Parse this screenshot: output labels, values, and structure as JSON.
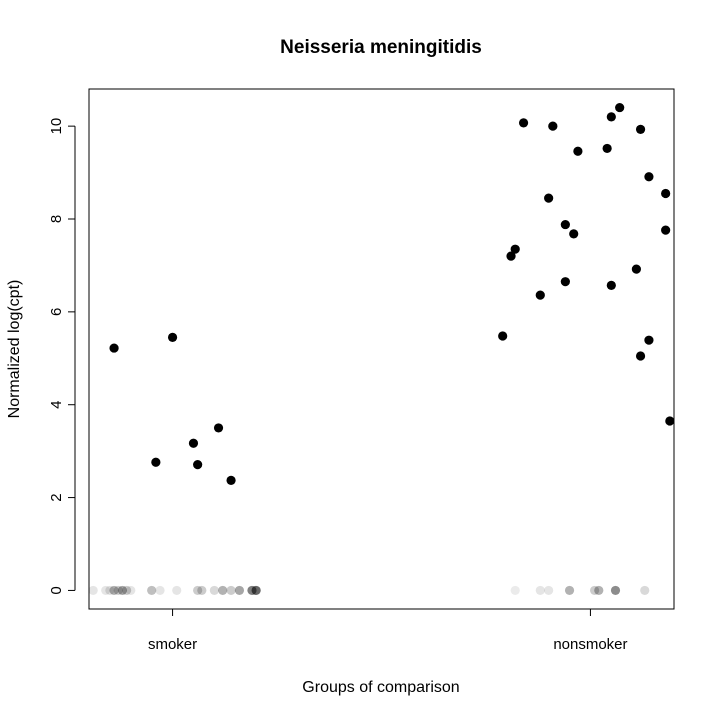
{
  "chart_data": {
    "type": "scatter",
    "title": "Neisseria meningitidis",
    "xlabel": "Groups of comparison",
    "ylabel": "Normalized log(cpt)",
    "categories": [
      "smoker",
      "nonsmoker"
    ],
    "ylim": [
      -0.4,
      10.8
    ],
    "yticks": [
      0,
      2,
      4,
      6,
      8,
      10
    ],
    "grid": false,
    "legend": "none",
    "point_color": "#000000",
    "series": [
      {
        "category": "smoker",
        "nonzero_points": [
          {
            "jitter": -0.14,
            "y": 5.22
          },
          {
            "jitter": -0.04,
            "y": 2.76
          },
          {
            "jitter": 0.0,
            "y": 5.45
          },
          {
            "jitter": 0.05,
            "y": 3.17
          },
          {
            "jitter": 0.06,
            "y": 2.71
          },
          {
            "jitter": 0.11,
            "y": 3.5
          },
          {
            "jitter": 0.14,
            "y": 2.37
          }
        ],
        "zero_points": [
          {
            "jitter": -0.19,
            "alpha": 0.1
          },
          {
            "jitter": -0.16,
            "alpha": 0.1
          },
          {
            "jitter": -0.15,
            "alpha": 0.12
          },
          {
            "jitter": -0.14,
            "alpha": 0.3
          },
          {
            "jitter": -0.13,
            "alpha": 0.2
          },
          {
            "jitter": -0.12,
            "alpha": 0.35
          },
          {
            "jitter": -0.11,
            "alpha": 0.2
          },
          {
            "jitter": -0.1,
            "alpha": 0.1
          },
          {
            "jitter": -0.05,
            "alpha": 0.25
          },
          {
            "jitter": -0.03,
            "alpha": 0.1
          },
          {
            "jitter": 0.01,
            "alpha": 0.1
          },
          {
            "jitter": 0.06,
            "alpha": 0.2
          },
          {
            "jitter": 0.07,
            "alpha": 0.2
          },
          {
            "jitter": 0.1,
            "alpha": 0.15
          },
          {
            "jitter": 0.12,
            "alpha": 0.3
          },
          {
            "jitter": 0.14,
            "alpha": 0.2
          },
          {
            "jitter": 0.16,
            "alpha": 0.35
          },
          {
            "jitter": 0.19,
            "alpha": 0.5
          },
          {
            "jitter": 0.2,
            "alpha": 0.6
          }
        ]
      },
      {
        "category": "nonsmoker",
        "nonzero_points": [
          {
            "jitter": -0.21,
            "y": 5.48
          },
          {
            "jitter": -0.19,
            "y": 7.2
          },
          {
            "jitter": -0.18,
            "y": 7.35
          },
          {
            "jitter": -0.16,
            "y": 10.07
          },
          {
            "jitter": -0.12,
            "y": 6.36
          },
          {
            "jitter": -0.1,
            "y": 8.45
          },
          {
            "jitter": -0.09,
            "y": 10.0
          },
          {
            "jitter": -0.06,
            "y": 7.88
          },
          {
            "jitter": -0.06,
            "y": 6.65
          },
          {
            "jitter": -0.04,
            "y": 7.68
          },
          {
            "jitter": -0.03,
            "y": 9.46
          },
          {
            "jitter": 0.04,
            "y": 9.52
          },
          {
            "jitter": 0.05,
            "y": 6.57
          },
          {
            "jitter": 0.05,
            "y": 10.2
          },
          {
            "jitter": 0.07,
            "y": 10.4
          },
          {
            "jitter": 0.11,
            "y": 6.92
          },
          {
            "jitter": 0.12,
            "y": 5.05
          },
          {
            "jitter": 0.12,
            "y": 9.93
          },
          {
            "jitter": 0.14,
            "y": 8.91
          },
          {
            "jitter": 0.14,
            "y": 5.39
          },
          {
            "jitter": 0.18,
            "y": 7.76
          },
          {
            "jitter": 0.18,
            "y": 8.55
          },
          {
            "jitter": 0.19,
            "y": 3.65
          }
        ],
        "zero_points": [
          {
            "jitter": -0.18,
            "alpha": 0.08
          },
          {
            "jitter": -0.12,
            "alpha": 0.1
          },
          {
            "jitter": -0.1,
            "alpha": 0.1
          },
          {
            "jitter": -0.05,
            "alpha": 0.3
          },
          {
            "jitter": 0.01,
            "alpha": 0.2
          },
          {
            "jitter": 0.02,
            "alpha": 0.3
          },
          {
            "jitter": 0.06,
            "alpha": 0.45
          },
          {
            "jitter": 0.13,
            "alpha": 0.15
          }
        ]
      }
    ]
  }
}
